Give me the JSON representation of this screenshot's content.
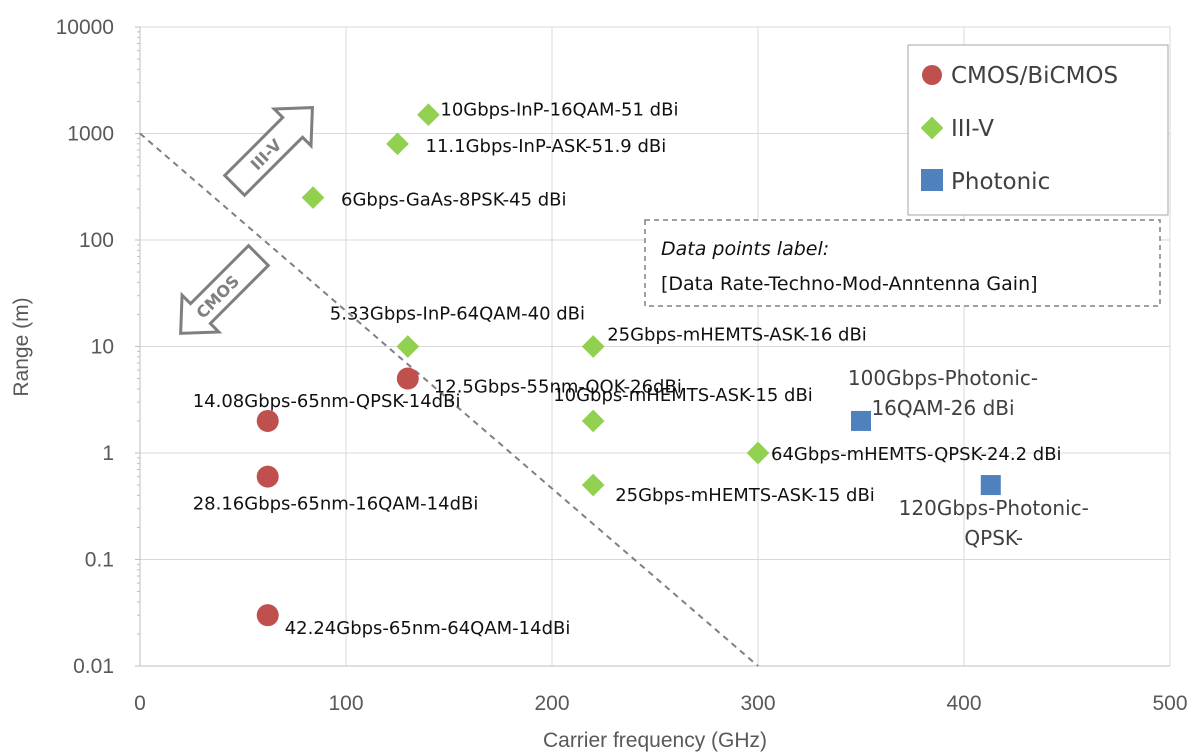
{
  "chart_data": {
    "type": "scatter",
    "title": "",
    "xlabel": "Carrier frequency (GHz)",
    "ylabel": "Range (m)",
    "xlim": [
      0,
      500
    ],
    "ylim": [
      0.01,
      10000
    ],
    "y_scale": "log",
    "x_ticks": [
      "0",
      "100",
      "200",
      "300",
      "400",
      "500"
    ],
    "y_ticks": [
      "0.01",
      "0.1",
      "1",
      "10",
      "100",
      "1000",
      "10000"
    ],
    "grid": true,
    "legend_position": "top-right",
    "series": [
      {
        "name": "CMOS/BiCMOS",
        "color": "#c0504d",
        "marker": "circle",
        "points": [
          {
            "x": 130,
            "y": 5,
            "label": "12.5Gbps-55nm-OOK-26dBi"
          },
          {
            "x": 62,
            "y": 2,
            "label": "14.08Gbps-65nm-QPSK-14dBi"
          },
          {
            "x": 62,
            "y": 0.6,
            "label": "28.16Gbps-65nm-16QAM-14dBi"
          },
          {
            "x": 62,
            "y": 0.03,
            "label": "42.24Gbps-65nm-64QAM-14dBi"
          }
        ]
      },
      {
        "name": "III-V",
        "color": "#92d050",
        "marker": "diamond",
        "points": [
          {
            "x": 140,
            "y": 1500,
            "label": "10Gbps-InP-16QAM-51 dBi"
          },
          {
            "x": 125,
            "y": 800,
            "label": "11.1Gbps-InP-ASK-51.9 dBi"
          },
          {
            "x": 84,
            "y": 250,
            "label": "6Gbps-GaAs-8PSK-45 dBi"
          },
          {
            "x": 130,
            "y": 10,
            "label": "5.33Gbps-InP-64QAM-40 dBi"
          },
          {
            "x": 220,
            "y": 10,
            "label": "25Gbps-mHEMTS-ASK-16 dBi"
          },
          {
            "x": 220,
            "y": 2,
            "label": "10Gbps-mHEMTS-ASK-15 dBi"
          },
          {
            "x": 300,
            "y": 1,
            "label": "64Gbps-mHEMTS-QPSK-24.2 dBi"
          },
          {
            "x": 220,
            "y": 0.5,
            "label": "25Gbps-mHEMTS-ASK-15 dBi"
          }
        ]
      },
      {
        "name": "Photonic",
        "color": "#4f81bd",
        "marker": "square",
        "points": [
          {
            "x": 350,
            "y": 2,
            "label_lines": [
              "100Gbps-Photonic-",
              "16QAM-26 dBi"
            ]
          },
          {
            "x": 413,
            "y": 0.5,
            "label_lines": [
              "120Gbps-Photonic-",
              "QPSK-"
            ]
          }
        ]
      }
    ],
    "trend_line": {
      "style": "dashed",
      "color": "#808080",
      "from": [
        0,
        1000
      ],
      "to": [
        300,
        0.01
      ]
    },
    "note": {
      "lines": [
        "Data points label:",
        "[Data Rate-Techno-Mod-Anntenna Gain]"
      ]
    },
    "arrows": [
      {
        "text": "III-V",
        "direction": "up-right"
      },
      {
        "text": "CMOS",
        "direction": "down-left"
      }
    ]
  }
}
